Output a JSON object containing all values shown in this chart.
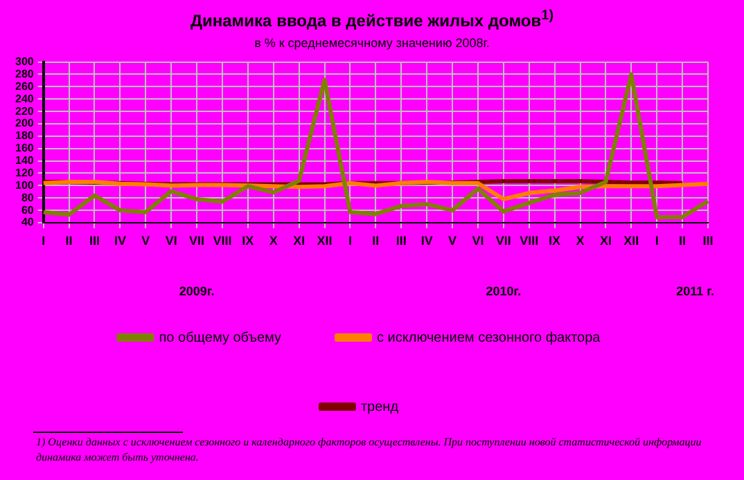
{
  "chart_data": {
    "type": "line",
    "title": "Динамика ввода в действие жилых домов$^{1)}$",
    "subtitle": "в % к среднемесячному значению 2008г.",
    "categories": [
      "I",
      "II",
      "III",
      "IV",
      "V",
      "VI",
      "VII",
      "VIII",
      "IX",
      "X",
      "XI",
      "XII",
      "I",
      "II",
      "III",
      "IV",
      "V",
      "VI",
      "VII",
      "VIII",
      "IX",
      "X",
      "XI",
      "XII",
      "I",
      "II",
      "III"
    ],
    "series": [
      {
        "name": "по общему объему",
        "color": "#808000",
        "values": [
          57,
          53,
          84,
          60,
          57,
          91,
          78,
          74,
          99,
          89,
          108,
          271,
          57,
          54,
          67,
          70,
          60,
          95,
          58,
          72,
          85,
          88,
          106,
          280,
          49,
          49,
          75
        ]
      },
      {
        "name": "с исключением сезонного фактора",
        "color": "#ff8000",
        "values": [
          104,
          106,
          106,
          103,
          102,
          100,
          101,
          101,
          100,
          99,
          98,
          99,
          104,
          100,
          104,
          106,
          104,
          104,
          78,
          88,
          92,
          98,
          99,
          99,
          99,
          101,
          103
        ]
      },
      {
        "name": "тренд",
        "color": "#800000",
        "values": [
          106,
          106,
          105,
          104,
          103,
          102,
          102,
          102,
          102,
          102,
          102,
          102,
          104,
          104,
          104,
          105,
          105,
          106,
          107,
          107,
          107,
          107,
          106,
          105,
          105,
          104,
          null
        ]
      }
    ],
    "ylim": [
      40,
      300
    ],
    "yticks": [
      40,
      60,
      80,
      100,
      120,
      140,
      160,
      180,
      200,
      220,
      240,
      260,
      280,
      300
    ],
    "grid": true,
    "legend": "bottom",
    "marker": "none",
    "line_style": "solid",
    "annotations": [
      "2009г.",
      "2010г.",
      "2011 г.",
      "1) Оценки данных с исключением сезонного и календарного факторов осуществлены. При поступлении новой статистической информации динамика может быть уточнена."
    ]
  }
}
